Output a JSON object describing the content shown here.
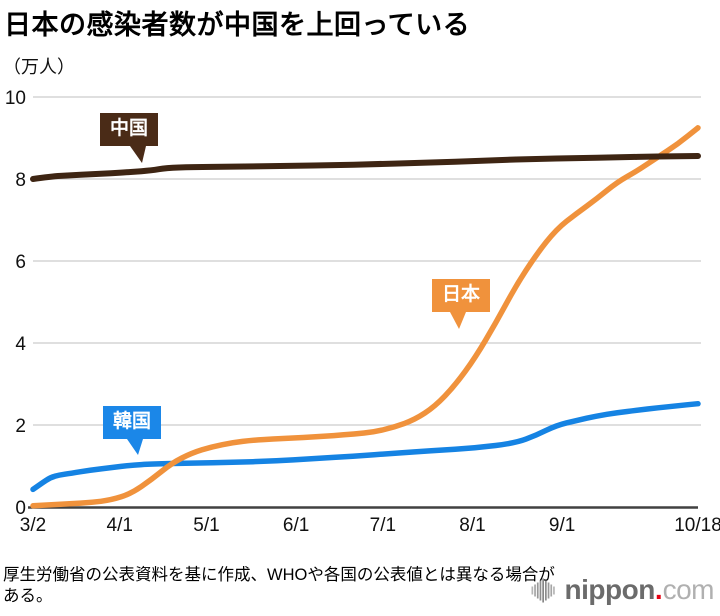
{
  "page": {
    "title": "日本の感染者数が中国を上回っている",
    "unit_label": "（万人）",
    "source_note": "厚生労働省の公表資料を基に作成、WHOや各国の公表値とは異なる場合がある。"
  },
  "logo": {
    "icon": "waveform-icon",
    "name": "nippon",
    "dot": ".",
    "tld": "com",
    "name_color": "#6b6b6b",
    "dot_color": "#e60012",
    "tld_color": "#b0b0b0"
  },
  "colors": {
    "china_line": "#3e2513",
    "china_label_bg": "#4a2b17",
    "japan_line": "#f0923c",
    "japan_label_bg": "#f0923c",
    "korea_line": "#1583e3",
    "korea_label_bg": "#1b87e8",
    "gridline": "#cccccc",
    "axis": "#414141",
    "tick_text": "#111111"
  },
  "chart_data": {
    "type": "line",
    "title": "日本の感染者数が中国を上回っている",
    "unit": "万人",
    "x_axis": {
      "start": "3/2",
      "end": "10/18",
      "ticks": [
        "3/2",
        "4/1",
        "5/1",
        "6/1",
        "7/1",
        "8/1",
        "9/1",
        "10/18"
      ]
    },
    "y_axis": {
      "range": [
        0,
        10
      ],
      "ticks": [
        10,
        8,
        6,
        4,
        2,
        0
      ],
      "unit_label": "（万人）"
    },
    "grid": true,
    "legend_position": "inline-bubbles",
    "series": [
      {
        "key": "china",
        "label": "中国",
        "color": "#3e2513",
        "label_bg": "#4a2b17",
        "points": [
          [
            "3/2",
            8.0
          ],
          [
            "3/8",
            8.06
          ],
          [
            "3/15",
            8.09
          ],
          [
            "3/22",
            8.12
          ],
          [
            "3/29",
            8.14
          ],
          [
            "4/5",
            8.17
          ],
          [
            "4/12",
            8.21
          ],
          [
            "4/17",
            8.27
          ],
          [
            "4/26",
            8.29
          ],
          [
            "5/10",
            8.3
          ],
          [
            "5/31",
            8.32
          ],
          [
            "6/14",
            8.34
          ],
          [
            "6/28",
            8.36
          ],
          [
            "7/12",
            8.39
          ],
          [
            "7/26",
            8.42
          ],
          [
            "8/9",
            8.46
          ],
          [
            "8/23",
            8.49
          ],
          [
            "9/6",
            8.51
          ],
          [
            "9/20",
            8.53
          ],
          [
            "10/4",
            8.55
          ],
          [
            "10/18",
            8.56
          ]
        ]
      },
      {
        "key": "japan",
        "label": "日本",
        "color": "#f0923c",
        "label_bg": "#f0923c",
        "points": [
          [
            "3/2",
            0.03
          ],
          [
            "3/8",
            0.05
          ],
          [
            "3/15",
            0.08
          ],
          [
            "3/22",
            0.11
          ],
          [
            "3/29",
            0.17
          ],
          [
            "4/5",
            0.33
          ],
          [
            "4/12",
            0.67
          ],
          [
            "4/19",
            1.07
          ],
          [
            "4/26",
            1.32
          ],
          [
            "5/3",
            1.47
          ],
          [
            "5/10",
            1.57
          ],
          [
            "5/17",
            1.63
          ],
          [
            "5/24",
            1.66
          ],
          [
            "5/31",
            1.68
          ],
          [
            "6/7",
            1.71
          ],
          [
            "6/14",
            1.74
          ],
          [
            "6/21",
            1.78
          ],
          [
            "6/28",
            1.83
          ],
          [
            "7/5",
            1.95
          ],
          [
            "7/12",
            2.13
          ],
          [
            "7/19",
            2.45
          ],
          [
            "7/26",
            2.97
          ],
          [
            "8/2",
            3.65
          ],
          [
            "8/9",
            4.48
          ],
          [
            "8/16",
            5.39
          ],
          [
            "8/23",
            6.15
          ],
          [
            "8/30",
            6.77
          ],
          [
            "9/6",
            7.16
          ],
          [
            "9/13",
            7.52
          ],
          [
            "9/20",
            7.92
          ],
          [
            "9/27",
            8.2
          ],
          [
            "10/4",
            8.53
          ],
          [
            "10/11",
            8.85
          ],
          [
            "10/18",
            9.25
          ]
        ]
      },
      {
        "key": "korea",
        "label": "韓国",
        "color": "#1583e3",
        "label_bg": "#1b87e8",
        "points": [
          [
            "3/2",
            0.43
          ],
          [
            "3/5",
            0.58
          ],
          [
            "3/8",
            0.72
          ],
          [
            "3/11",
            0.78
          ],
          [
            "3/15",
            0.82
          ],
          [
            "3/22",
            0.9
          ],
          [
            "3/29",
            0.96
          ],
          [
            "4/5",
            1.02
          ],
          [
            "4/12",
            1.05
          ],
          [
            "4/26",
            1.07
          ],
          [
            "5/10",
            1.09
          ],
          [
            "5/24",
            1.12
          ],
          [
            "6/7",
            1.18
          ],
          [
            "6/21",
            1.24
          ],
          [
            "7/5",
            1.31
          ],
          [
            "7/19",
            1.38
          ],
          [
            "8/2",
            1.44
          ],
          [
            "8/16",
            1.56
          ],
          [
            "8/23",
            1.75
          ],
          [
            "8/30",
            1.99
          ],
          [
            "9/6",
            2.11
          ],
          [
            "9/13",
            2.22
          ],
          [
            "9/20",
            2.3
          ],
          [
            "9/27",
            2.36
          ],
          [
            "10/4",
            2.42
          ],
          [
            "10/11",
            2.47
          ],
          [
            "10/18",
            2.52
          ]
        ]
      }
    ]
  }
}
